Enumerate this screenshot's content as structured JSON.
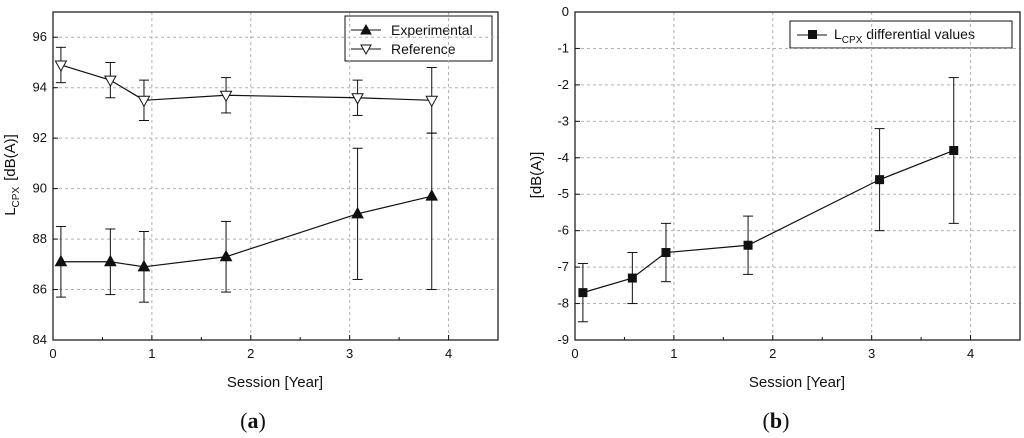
{
  "chart_data": [
    {
      "id": "a",
      "type": "line",
      "caption_open": "(",
      "caption_letter": "a",
      "caption_close": ")",
      "xlabel": "Session   [Year]",
      "ylabel_main": "L",
      "ylabel_sub": "CPX",
      "ylabel_unit": "[dB(A)]",
      "xlim": [
        0,
        4.5
      ],
      "ylim": [
        84,
        97
      ],
      "xticks": [
        0,
        1,
        2,
        3,
        4
      ],
      "yticks": [
        84,
        86,
        88,
        90,
        92,
        94,
        96
      ],
      "grid": true,
      "legend_position": "top-right",
      "series": [
        {
          "name": "Experimental",
          "marker": "triangle-up-filled",
          "x": [
            0.08,
            0.58,
            0.92,
            1.75,
            3.08,
            3.83
          ],
          "y": [
            87.1,
            87.1,
            86.9,
            87.3,
            89.0,
            89.7
          ],
          "err_low": [
            85.7,
            85.8,
            85.5,
            85.9,
            86.4,
            86.0
          ],
          "err_high": [
            88.5,
            88.4,
            88.3,
            88.7,
            91.6,
            92.2
          ]
        },
        {
          "name": "Reference",
          "marker": "triangle-down-open",
          "x": [
            0.08,
            0.58,
            0.92,
            1.75,
            3.08,
            3.83
          ],
          "y": [
            94.9,
            94.3,
            93.5,
            93.7,
            93.6,
            93.5
          ],
          "err_low": [
            94.2,
            93.6,
            92.7,
            93.0,
            92.9,
            92.2
          ],
          "err_high": [
            95.6,
            95.0,
            94.3,
            94.4,
            94.3,
            94.8
          ]
        }
      ]
    },
    {
      "id": "b",
      "type": "line",
      "caption_open": "(",
      "caption_letter": "b",
      "caption_close": ")",
      "xlabel": "Session   [Year]",
      "ylabel": "[dB(A)]",
      "xlim": [
        0,
        4.5
      ],
      "ylim": [
        -9,
        0
      ],
      "xticks": [
        0,
        1,
        2,
        3,
        4
      ],
      "yticks": [
        0,
        -1,
        -2,
        -3,
        -4,
        -5,
        -6,
        -7,
        -8,
        -9
      ],
      "grid": true,
      "legend_position": "top-right",
      "series": [
        {
          "name_main": "L",
          "name_sub": "CPX",
          "name_rest": " differential values",
          "marker": "square-filled",
          "x": [
            0.08,
            0.58,
            0.92,
            1.75,
            3.08,
            3.83
          ],
          "y": [
            -7.7,
            -7.3,
            -6.6,
            -6.4,
            -4.6,
            -3.8
          ],
          "err_low": [
            -8.5,
            -8.0,
            -7.4,
            -7.2,
            -6.0,
            -5.8
          ],
          "err_high": [
            -6.9,
            -6.6,
            -5.8,
            -5.6,
            -3.2,
            -1.8
          ]
        }
      ]
    }
  ]
}
